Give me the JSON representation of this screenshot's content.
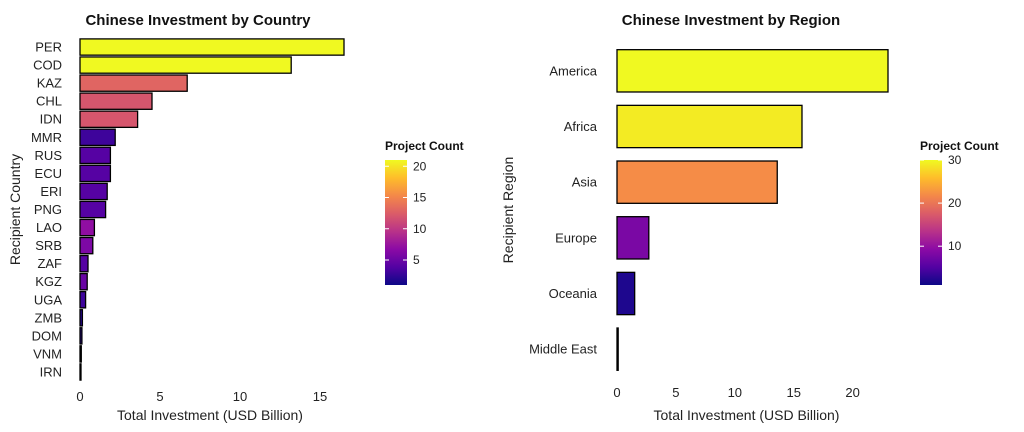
{
  "chart_data": [
    {
      "type": "bar",
      "orientation": "horizontal",
      "title": "Chinese Investment by Country",
      "xlabel": "Total Investment (USD Billion)",
      "ylabel": "Recipient Country",
      "xlim": [
        0,
        17
      ],
      "xticks": [
        0,
        5,
        10,
        15
      ],
      "categories": [
        "PER",
        "COD",
        "KAZ",
        "CHL",
        "IDN",
        "MMR",
        "RUS",
        "ECU",
        "ERI",
        "PNG",
        "LAO",
        "SRB",
        "ZAF",
        "KGZ",
        "UGA",
        "ZMB",
        "DOM",
        "VNM",
        "IRN"
      ],
      "values": [
        16.5,
        13.2,
        6.7,
        4.5,
        3.6,
        2.2,
        1.9,
        1.9,
        1.7,
        1.6,
        0.9,
        0.8,
        0.5,
        0.45,
        0.35,
        0.15,
        0.12,
        0.08,
        0.05
      ],
      "color_values": [
        21,
        21,
        13,
        12,
        12,
        3,
        4,
        4,
        4,
        4,
        7,
        6,
        4,
        5,
        3,
        2,
        2,
        2,
        2
      ],
      "legend": {
        "title": "Project Count",
        "min": 1,
        "max": 21,
        "ticks": [
          5,
          10,
          15,
          20
        ],
        "position": "right"
      }
    },
    {
      "type": "bar",
      "orientation": "horizontal",
      "title": "Chinese Investment by Region",
      "xlabel": "Total Investment (USD Billion)",
      "ylabel": "Recipient Region",
      "xlim": [
        0,
        23
      ],
      "xticks": [
        0,
        5,
        10,
        15,
        20
      ],
      "categories": [
        "America",
        "Africa",
        "Asia",
        "Europe",
        "Oceania",
        "Middle East"
      ],
      "values": [
        23,
        15.7,
        13.6,
        2.7,
        1.5,
        0.1
      ],
      "color_values": [
        30,
        29,
        22,
        8,
        2,
        1
      ],
      "legend": {
        "title": "Project Count",
        "min": 1,
        "max": 30,
        "ticks": [
          10,
          20,
          30
        ],
        "position": "right"
      }
    }
  ],
  "colormap": [
    "#0d0887",
    "#5302a3",
    "#8b0aa5",
    "#b83289",
    "#db5c68",
    "#f48849",
    "#febd2a",
    "#f0f921"
  ]
}
